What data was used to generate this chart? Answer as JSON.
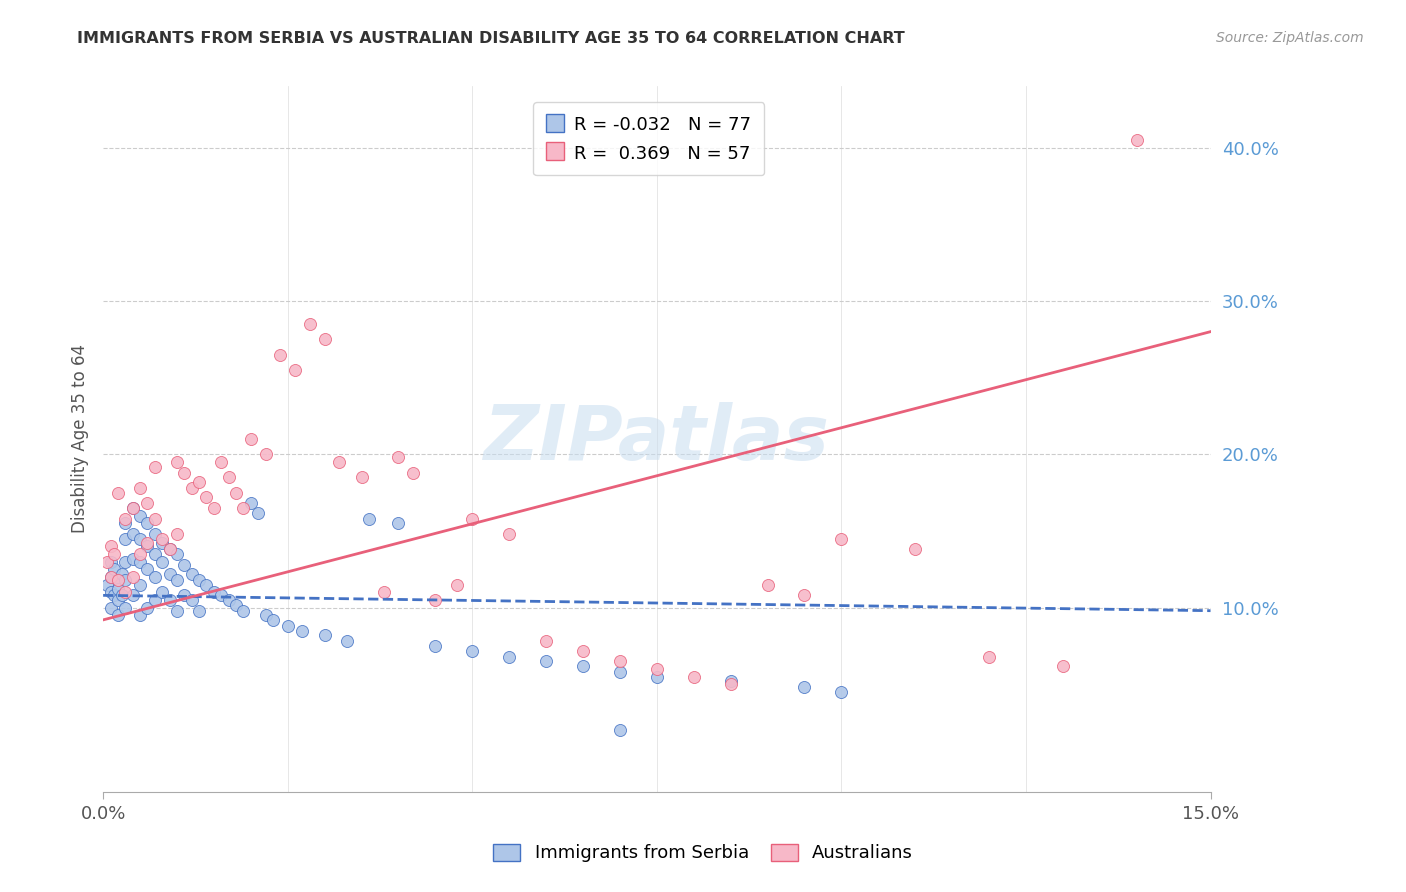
{
  "title": "IMMIGRANTS FROM SERBIA VS AUSTRALIAN DISABILITY AGE 35 TO 64 CORRELATION CHART",
  "source": "Source: ZipAtlas.com",
  "ylabel": "Disability Age 35 to 64",
  "serbia_label": "Immigrants from Serbia",
  "australia_label": "Australians",
  "xmin": 0.0,
  "xmax": 0.15,
  "ymin": -0.02,
  "ymax": 0.44,
  "yticks": [
    0.1,
    0.2,
    0.3,
    0.4
  ],
  "ytick_labels": [
    "10.0%",
    "20.0%",
    "30.0%",
    "40.0%"
  ],
  "serbia_R": "-0.032",
  "serbia_N": "77",
  "australia_R": "0.369",
  "australia_N": "57",
  "serbia_color": "#aec6e8",
  "australia_color": "#f7b8c8",
  "serbia_line_color": "#4472c4",
  "australia_line_color": "#e8607a",
  "watermark": "ZIPatlas",
  "serbia_line_x0": 0.0,
  "serbia_line_x1": 0.15,
  "serbia_line_y0": 0.108,
  "serbia_line_y1": 0.098,
  "australia_line_x0": 0.0,
  "australia_line_x1": 0.15,
  "australia_line_y0": 0.092,
  "australia_line_y1": 0.28,
  "serbia_x": [
    0.0005,
    0.001,
    0.001,
    0.001,
    0.001,
    0.0015,
    0.0015,
    0.002,
    0.002,
    0.002,
    0.002,
    0.0025,
    0.0025,
    0.003,
    0.003,
    0.003,
    0.003,
    0.003,
    0.004,
    0.004,
    0.004,
    0.004,
    0.005,
    0.005,
    0.005,
    0.005,
    0.005,
    0.006,
    0.006,
    0.006,
    0.006,
    0.007,
    0.007,
    0.007,
    0.007,
    0.008,
    0.008,
    0.008,
    0.009,
    0.009,
    0.009,
    0.01,
    0.01,
    0.01,
    0.011,
    0.011,
    0.012,
    0.012,
    0.013,
    0.013,
    0.014,
    0.015,
    0.016,
    0.017,
    0.018,
    0.019,
    0.02,
    0.021,
    0.022,
    0.023,
    0.025,
    0.027,
    0.03,
    0.033,
    0.036,
    0.04,
    0.045,
    0.05,
    0.055,
    0.06,
    0.065,
    0.07,
    0.075,
    0.085,
    0.095,
    0.1,
    0.07
  ],
  "serbia_y": [
    0.115,
    0.13,
    0.12,
    0.11,
    0.1,
    0.125,
    0.108,
    0.118,
    0.112,
    0.105,
    0.095,
    0.122,
    0.108,
    0.155,
    0.145,
    0.13,
    0.118,
    0.1,
    0.165,
    0.148,
    0.132,
    0.108,
    0.16,
    0.145,
    0.13,
    0.115,
    0.095,
    0.155,
    0.14,
    0.125,
    0.1,
    0.148,
    0.135,
    0.12,
    0.105,
    0.142,
    0.13,
    0.11,
    0.138,
    0.122,
    0.105,
    0.135,
    0.118,
    0.098,
    0.128,
    0.108,
    0.122,
    0.105,
    0.118,
    0.098,
    0.115,
    0.11,
    0.108,
    0.105,
    0.102,
    0.098,
    0.168,
    0.162,
    0.095,
    0.092,
    0.088,
    0.085,
    0.082,
    0.078,
    0.158,
    0.155,
    0.075,
    0.072,
    0.068,
    0.065,
    0.062,
    0.058,
    0.055,
    0.052,
    0.048,
    0.045,
    0.02
  ],
  "australia_x": [
    0.0005,
    0.001,
    0.001,
    0.0015,
    0.002,
    0.002,
    0.003,
    0.003,
    0.004,
    0.004,
    0.005,
    0.005,
    0.006,
    0.006,
    0.007,
    0.007,
    0.008,
    0.009,
    0.01,
    0.01,
    0.011,
    0.012,
    0.013,
    0.014,
    0.015,
    0.016,
    0.017,
    0.018,
    0.019,
    0.02,
    0.022,
    0.024,
    0.026,
    0.028,
    0.03,
    0.032,
    0.035,
    0.038,
    0.04,
    0.042,
    0.045,
    0.048,
    0.05,
    0.055,
    0.06,
    0.065,
    0.07,
    0.075,
    0.08,
    0.085,
    0.09,
    0.095,
    0.1,
    0.11,
    0.12,
    0.13,
    0.14
  ],
  "australia_y": [
    0.13,
    0.14,
    0.12,
    0.135,
    0.175,
    0.118,
    0.158,
    0.11,
    0.165,
    0.12,
    0.178,
    0.135,
    0.168,
    0.142,
    0.192,
    0.158,
    0.145,
    0.138,
    0.195,
    0.148,
    0.188,
    0.178,
    0.182,
    0.172,
    0.165,
    0.195,
    0.185,
    0.175,
    0.165,
    0.21,
    0.2,
    0.265,
    0.255,
    0.285,
    0.275,
    0.195,
    0.185,
    0.11,
    0.198,
    0.188,
    0.105,
    0.115,
    0.158,
    0.148,
    0.078,
    0.072,
    0.065,
    0.06,
    0.055,
    0.05,
    0.115,
    0.108,
    0.145,
    0.138,
    0.068,
    0.062,
    0.405
  ]
}
